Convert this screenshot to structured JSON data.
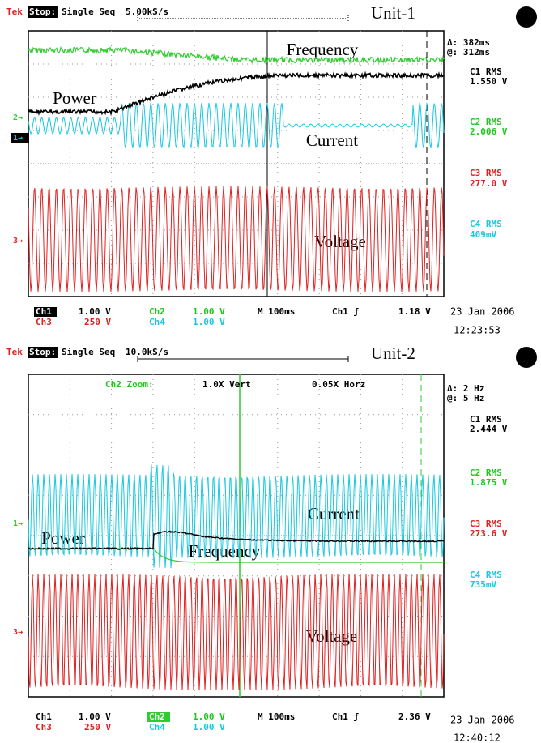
{
  "panels": [
    {
      "header": {
        "brand": "Tek",
        "state": "Stop:",
        "mode": "Single Seq",
        "rate": "5.00kS/s"
      },
      "unit_label": "Unit-1",
      "trace_labels": {
        "frequency": "Frequency",
        "power": "Power",
        "current": "Current",
        "voltage": "Voltage"
      },
      "markers": [
        "2→",
        "1→",
        "3→"
      ],
      "cursor": {
        "delta": "Δ: 382ms",
        "at": "@: 312ms"
      },
      "measurements": [
        {
          "label": "C1 RMS",
          "value": "1.550 V"
        },
        {
          "label": "C2 RMS",
          "value": "2.006 V"
        },
        {
          "label": "C3 RMS",
          "value": "277.0 V"
        },
        {
          "label": "C4 RMS",
          "value": "409mV"
        }
      ],
      "footer": {
        "ch1": "Ch1",
        "ch1_scale": "1.00 V",
        "ch2": "Ch2",
        "ch2_scale": "1.00 V",
        "ch3": "Ch3",
        "ch3_scale": "250 V",
        "ch4": "Ch4",
        "ch4_scale": "1.00 V",
        "timebase": "M 100ms",
        "trigger": "Ch1 ƒ",
        "trigger_level": "1.18 V"
      },
      "date": "23 Jan 2006",
      "time": "12:23:53"
    },
    {
      "header": {
        "brand": "Tek",
        "state": "Stop:",
        "mode": "Single Seq",
        "rate": "10.0kS/s"
      },
      "unit_label": "Unit-2",
      "zoom": {
        "label": "Ch2 Zoom:",
        "vert": "1.0X Vert",
        "horz": "0.05X Horz"
      },
      "trace_labels": {
        "frequency": "Frequency",
        "power": "Power",
        "current": "Current",
        "voltage": "Voltage"
      },
      "markers": [
        "1→",
        "3→"
      ],
      "cursor": {
        "delta": "Δ: 2 Hz",
        "at": "@: 5 Hz"
      },
      "measurements": [
        {
          "label": "C1 RMS",
          "value": "2.444 V"
        },
        {
          "label": "C2 RMS",
          "value": "1.875 V"
        },
        {
          "label": "C3 RMS",
          "value": "273.6 V"
        },
        {
          "label": "C4 RMS",
          "value": "735mV"
        }
      ],
      "footer": {
        "ch1": "Ch1",
        "ch1_scale": "1.00 V",
        "ch2": "Ch2",
        "ch2_scale": "1.00 V",
        "ch3": "Ch3",
        "ch3_scale": "250 V",
        "ch4": "Ch4",
        "ch4_scale": "1.00 V",
        "timebase": "M 100ms",
        "trigger": "Ch1 ƒ",
        "trigger_level": "2.36 V"
      },
      "date": "23 Jan 2006",
      "time": "12:40:12"
    }
  ]
}
